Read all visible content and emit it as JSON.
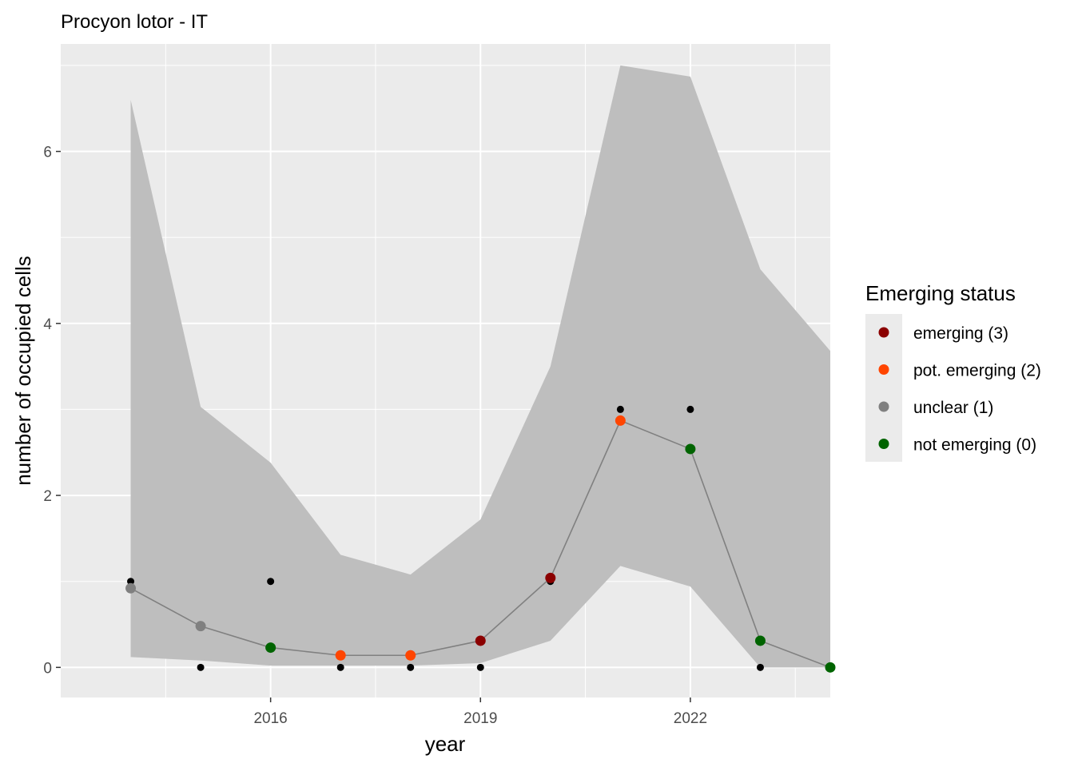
{
  "chart_data": {
    "type": "line",
    "title": "Procyon lotor - IT",
    "xlabel": "year",
    "ylabel": "number of occupied cells",
    "xlim": [
      2013.0,
      2024.0
    ],
    "ylim": [
      -0.35,
      7.25
    ],
    "x_ticks": [
      2016,
      2019,
      2022
    ],
    "x_tick_labels": [
      "2016",
      "2019",
      "2022"
    ],
    "x_minor_ticks": [
      2014.5,
      2017.5,
      2020.5,
      2023.5
    ],
    "y_ticks": [
      0,
      2,
      4,
      6
    ],
    "y_tick_labels": [
      "0",
      "2",
      "4",
      "6"
    ],
    "y_minor_ticks": [
      1,
      3,
      5,
      7
    ],
    "grid": true,
    "years": [
      2014,
      2015,
      2016,
      2017,
      2018,
      2019,
      2020,
      2021,
      2022,
      2023,
      2024
    ],
    "observed": [
      1,
      0,
      1,
      0,
      0,
      0,
      1,
      3,
      3,
      0,
      0
    ],
    "fitted": [
      0.92,
      0.48,
      0.23,
      0.14,
      0.14,
      0.31,
      1.04,
      2.87,
      2.54,
      0.31,
      0.0
    ],
    "ci_upper": [
      6.6,
      3.03,
      2.38,
      1.31,
      1.08,
      1.72,
      3.5,
      7.0,
      6.87,
      4.63,
      3.68
    ],
    "ci_lower": [
      0.12,
      0.08,
      0.02,
      0.02,
      0.02,
      0.05,
      0.31,
      1.18,
      0.94,
      0.0,
      0.0
    ],
    "status": [
      1,
      1,
      0,
      2,
      2,
      3,
      3,
      2,
      0,
      0,
      0
    ],
    "legend": {
      "title": "Emerging status",
      "placement": "right",
      "items": [
        {
          "code": 3,
          "label": "emerging (3)",
          "color": "#8b0000"
        },
        {
          "code": 2,
          "label": "pot. emerging (2)",
          "color": "#ff4500"
        },
        {
          "code": 1,
          "label": "unclear (1)",
          "color": "#808080"
        },
        {
          "code": 0,
          "label": "not emerging (0)",
          "color": "#006400"
        }
      ]
    },
    "colors": {
      "panel": "#ebebeb",
      "grid": "#ffffff",
      "ribbon": "#bebebe",
      "line": "#808080",
      "observed_point": "#000000"
    }
  }
}
